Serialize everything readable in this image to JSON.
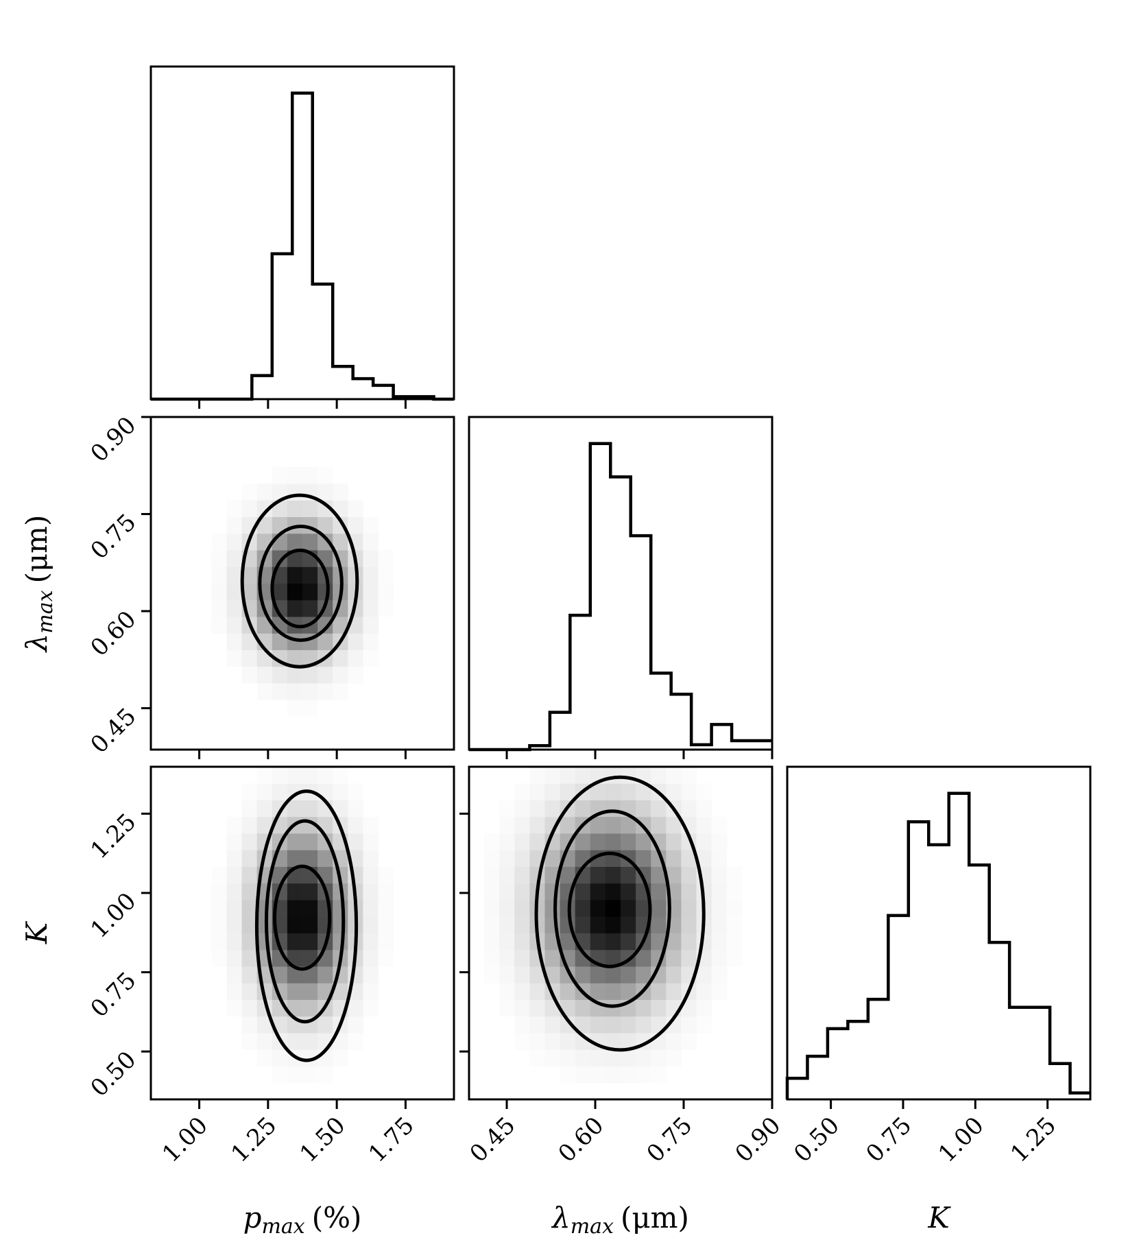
{
  "chart_data": {
    "type": "corner",
    "parameters": [
      {
        "key": "pmax",
        "symbol": "p",
        "subscript": "max",
        "unit": "(%)",
        "range": [
          0.824,
          1.926
        ],
        "ticks": [
          "1.00",
          "1.25",
          "1.50",
          "1.75"
        ]
      },
      {
        "key": "lmax",
        "symbol": "λ",
        "subscript": "max",
        "unit": "(μm)",
        "range": [
          0.386,
          0.9
        ],
        "ticks": [
          "0.45",
          "0.60",
          "0.75",
          "0.90"
        ]
      },
      {
        "key": "K",
        "symbol": "K",
        "subscript": "",
        "unit": "",
        "range": [
          0.349,
          1.398
        ],
        "ticks": [
          "0.50",
          "0.75",
          "1.00",
          "1.25"
        ]
      }
    ],
    "histograms": [
      {
        "param": "pmax",
        "bins": 15,
        "relative_heights": [
          0,
          0,
          0,
          0,
          0,
          0.077,
          0.475,
          1.0,
          0.376,
          0.107,
          0.067,
          0.045,
          0.008,
          0.008,
          0
        ]
      },
      {
        "param": "lmax",
        "bins": 15,
        "relative_heights": [
          0,
          0,
          0,
          0.013,
          0.122,
          0.439,
          1.0,
          0.891,
          0.699,
          0.25,
          0.181,
          0.016,
          0.082,
          0.029,
          0.029
        ]
      },
      {
        "param": "K",
        "bins": 15,
        "relative_heights": [
          0.069,
          0.141,
          0.231,
          0.255,
          0.327,
          0.601,
          0.907,
          0.832,
          1.0,
          0.766,
          0.513,
          0.301,
          0.301,
          0.117,
          0.021
        ]
      }
    ],
    "density_panels": [
      {
        "x": "pmax",
        "y": "lmax",
        "center": [
          1.376,
          0.64
        ],
        "contours": [
          {
            "x": [
              1.156,
              1.574
            ],
            "y": [
              0.514,
              0.779
            ]
          },
          {
            "x": [
              1.22,
              1.518
            ],
            "y": [
              0.555,
              0.731
            ]
          },
          {
            "x": [
              1.265,
              1.468
            ],
            "y": [
              0.576,
              0.694
            ]
          }
        ]
      },
      {
        "x": "pmax",
        "y": "K",
        "center": [
          1.376,
          0.93
        ],
        "contours": [
          {
            "x": [
              1.209,
              1.571
            ],
            "y": [
              0.472,
              1.321
            ]
          },
          {
            "x": [
              1.244,
              1.524
            ],
            "y": [
              0.594,
              1.227
            ]
          },
          {
            "x": [
              1.274,
              1.474
            ],
            "y": [
              0.76,
              1.084
            ]
          }
        ]
      },
      {
        "x": "lmax",
        "y": "K",
        "center": [
          0.625,
          0.93
        ],
        "contours": [
          {
            "x": [
              0.5,
              0.784
            ],
            "y": [
              0.505,
              1.365
            ]
          },
          {
            "x": [
              0.532,
              0.726
            ],
            "y": [
              0.643,
              1.258
            ]
          },
          {
            "x": [
              0.556,
              0.693
            ],
            "y": [
              0.768,
              1.125
            ]
          }
        ]
      }
    ],
    "colors": {
      "line": "#000000",
      "density": "greyscale"
    }
  }
}
